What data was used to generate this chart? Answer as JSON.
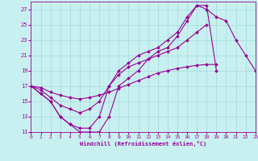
{
  "xlabel": "Windchill (Refroidissement éolien,°C)",
  "bg_color": "#c8f0f0",
  "grid_color": "#aadddd",
  "line_color": "#990099",
  "xlim": [
    0,
    23
  ],
  "ylim": [
    11,
    28
  ],
  "xticks": [
    0,
    1,
    2,
    3,
    4,
    5,
    6,
    7,
    8,
    9,
    10,
    11,
    12,
    13,
    14,
    15,
    16,
    17,
    18,
    19,
    20,
    21,
    22,
    23
  ],
  "yticks": [
    11,
    13,
    15,
    17,
    19,
    21,
    23,
    25,
    27
  ],
  "curves": [
    {
      "x": [
        0,
        1,
        2,
        3,
        4,
        5,
        6,
        7,
        8,
        9,
        10,
        11,
        12,
        13,
        14,
        15,
        16,
        17,
        18,
        19,
        20,
        21,
        22,
        23
      ],
      "y": [
        17,
        16,
        15,
        13,
        12,
        11,
        11,
        11,
        13,
        17,
        18,
        19,
        20.5,
        21.5,
        22,
        23.5,
        25.5,
        27.5,
        27.5,
        19,
        null,
        null,
        null,
        null
      ]
    },
    {
      "x": [
        0,
        1,
        2,
        3,
        4,
        5,
        6,
        7,
        8,
        9,
        10,
        11,
        12,
        13,
        14,
        15,
        16,
        17,
        18,
        19,
        20,
        21,
        22,
        23
      ],
      "y": [
        17,
        16,
        15,
        13,
        12,
        11.5,
        11.5,
        13,
        17,
        19,
        20,
        21,
        21.5,
        22,
        23,
        24,
        26,
        27.5,
        27,
        26,
        25.5,
        23,
        21,
        19
      ]
    },
    {
      "x": [
        0,
        1,
        2,
        3,
        4,
        5,
        6,
        7,
        8,
        9,
        10,
        11,
        12,
        13,
        14,
        15,
        16,
        17,
        18,
        19,
        20,
        21,
        22,
        23
      ],
      "y": [
        17,
        16.5,
        15.5,
        14.5,
        14,
        13.5,
        14,
        15,
        17,
        18.5,
        19.5,
        20,
        20.5,
        21,
        21.5,
        22,
        23,
        24,
        25,
        null,
        null,
        null,
        null,
        null
      ]
    },
    {
      "x": [
        0,
        1,
        2,
        3,
        4,
        5,
        6,
        7,
        8,
        9,
        10,
        11,
        12,
        13,
        14,
        15,
        16,
        17,
        18,
        19,
        20,
        21,
        22,
        23
      ],
      "y": [
        17,
        16.8,
        16.2,
        15.8,
        15.5,
        15.3,
        15.5,
        15.8,
        16.2,
        16.7,
        17.2,
        17.7,
        18.2,
        18.7,
        19,
        19.3,
        19.5,
        19.7,
        19.8,
        19.8,
        null,
        null,
        null,
        null
      ]
    }
  ]
}
